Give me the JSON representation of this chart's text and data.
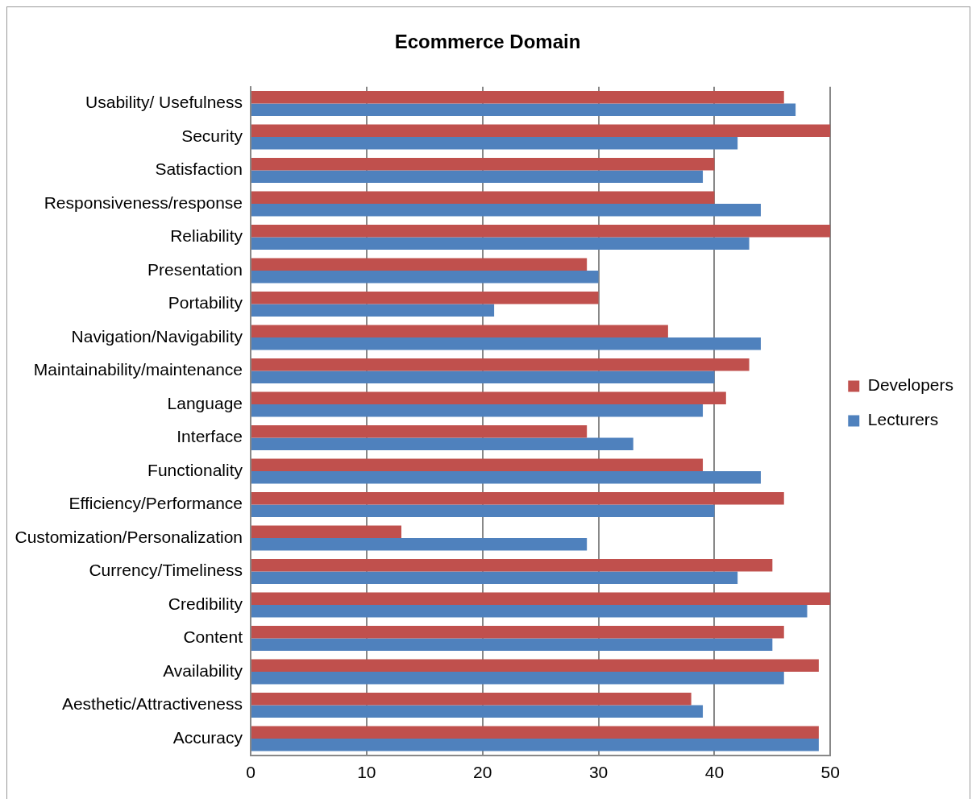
{
  "chart_data": {
    "type": "bar",
    "title": "Ecommerce Domain",
    "orientation": "horizontal",
    "categories": [
      "Usability/ Usefulness",
      "Security",
      "Satisfaction",
      "Responsiveness/response",
      "Reliability",
      "Presentation",
      "Portability",
      "Navigation/Navigability",
      "Maintainability/maintenance",
      "Language",
      "Interface",
      "Functionality",
      "Efficiency/Performance",
      "Customization/Personalization",
      "Currency/Timeliness",
      "Credibility",
      "Content",
      "Availability",
      "Aesthetic/Attractiveness",
      "Accuracy"
    ],
    "series": [
      {
        "name": "Developers",
        "color": "#c0504d",
        "values": [
          46,
          50,
          40,
          40,
          50,
          29,
          30,
          36,
          43,
          41,
          29,
          39,
          46,
          13,
          45,
          50,
          46,
          49,
          38,
          49
        ]
      },
      {
        "name": "Lecturers",
        "color": "#4f81bd",
        "values": [
          47,
          42,
          39,
          44,
          43,
          30,
          21,
          44,
          40,
          39,
          33,
          44,
          40,
          29,
          42,
          48,
          45,
          46,
          39,
          49
        ]
      }
    ],
    "xlim": [
      0,
      50
    ],
    "xticks": [
      0,
      10,
      20,
      30,
      40,
      50
    ],
    "grid": "x",
    "legend": "right"
  }
}
